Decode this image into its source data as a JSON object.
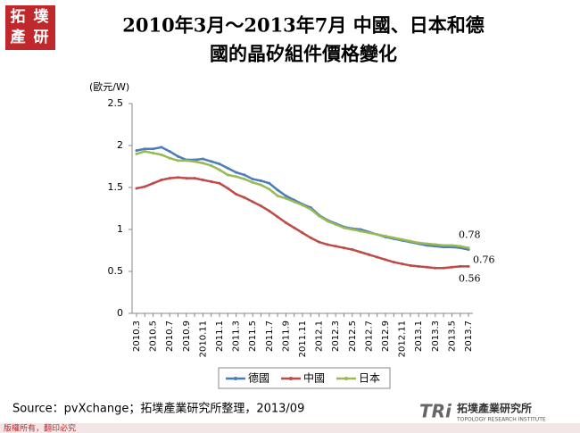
{
  "slide": {
    "logo": [
      "拓",
      "墣",
      "產",
      "研"
    ],
    "source": "Source：pvXchange；拓墣產業研究所整理，2013/09",
    "copyright": "版權所有，翻印必究",
    "brand": "TRi",
    "brand_name": "拓墣產業研究所",
    "brand_en": "TOPOLOGY RESEARCH INSTITUTE"
  },
  "chart_data": {
    "type": "line",
    "title": [
      "2010年3月～2013年7月 中國、日本和德",
      "國的晶矽組件價格變化"
    ],
    "y_label": "(歐元/W)",
    "categories": [
      "2010.3",
      null,
      "2010.5",
      null,
      "2010.7",
      null,
      "2010.9",
      null,
      "2010.11",
      null,
      "2011.1",
      null,
      "2011.3",
      null,
      "2011.5",
      null,
      "2011.7",
      null,
      "2011.9",
      null,
      "2011.11",
      null,
      "2012.1",
      null,
      "2012.3",
      null,
      "2012.5",
      null,
      "2012.7",
      null,
      "2012.9",
      null,
      "2012.11",
      null,
      "2013.1",
      null,
      "2013.3",
      null,
      "2013.5",
      null,
      "2013.7"
    ],
    "series": [
      {
        "name": "德國",
        "color": "#4a7ebb",
        "values": [
          1.94,
          1.96,
          1.96,
          1.98,
          1.93,
          1.87,
          1.83,
          1.83,
          1.84,
          1.81,
          1.78,
          1.73,
          1.68,
          1.65,
          1.6,
          1.58,
          1.55,
          1.47,
          1.4,
          1.35,
          1.3,
          1.26,
          1.17,
          1.11,
          1.07,
          1.03,
          1.01,
          1.0,
          0.97,
          0.94,
          0.91,
          0.89,
          0.87,
          0.85,
          0.83,
          0.81,
          0.8,
          0.79,
          0.79,
          0.78,
          0.76
        ]
      },
      {
        "name": "中國",
        "color": "#be4b48",
        "values": [
          1.49,
          1.51,
          1.55,
          1.59,
          1.61,
          1.62,
          1.61,
          1.61,
          1.59,
          1.57,
          1.55,
          1.49,
          1.42,
          1.38,
          1.33,
          1.28,
          1.22,
          1.15,
          1.08,
          1.02,
          0.96,
          0.9,
          0.85,
          0.82,
          0.8,
          0.78,
          0.76,
          0.73,
          0.7,
          0.67,
          0.64,
          0.61,
          0.59,
          0.57,
          0.56,
          0.55,
          0.54,
          0.54,
          0.55,
          0.56,
          0.56
        ]
      },
      {
        "name": "日本",
        "color": "#98b954",
        "values": [
          1.9,
          1.93,
          1.91,
          1.89,
          1.85,
          1.82,
          1.82,
          1.81,
          1.79,
          1.76,
          1.71,
          1.65,
          1.63,
          1.6,
          1.56,
          1.53,
          1.48,
          1.4,
          1.37,
          1.33,
          1.29,
          1.24,
          1.16,
          1.1,
          1.06,
          1.02,
          1.0,
          0.98,
          0.96,
          0.94,
          0.92,
          0.9,
          0.88,
          0.86,
          0.84,
          0.83,
          0.82,
          0.81,
          0.81,
          0.8,
          0.78
        ]
      }
    ],
    "ylim": [
      0,
      2.5
    ],
    "yticks": [
      0,
      0.5,
      1,
      1.5,
      2,
      2.5
    ],
    "grid": false,
    "legend": "bottom"
  }
}
